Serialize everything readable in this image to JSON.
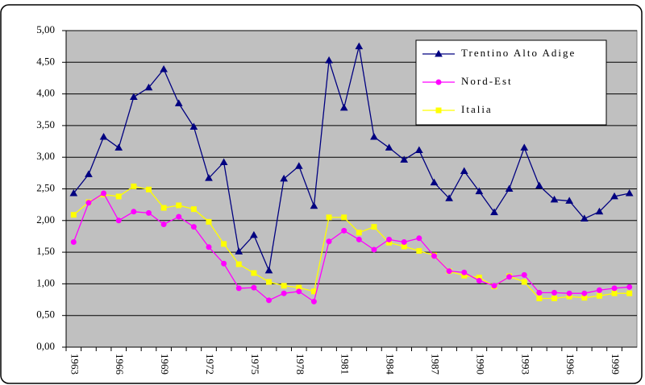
{
  "chart_data": {
    "type": "line",
    "categories": [
      "1963",
      null,
      null,
      "1966",
      null,
      null,
      "1969",
      null,
      null,
      "1972",
      null,
      null,
      "1975",
      null,
      null,
      "1978",
      null,
      null,
      "1981",
      null,
      null,
      "1984",
      null,
      null,
      "1987",
      null,
      null,
      "1990",
      null,
      null,
      "1993",
      null,
      null,
      "1996",
      null,
      null,
      "1999",
      null
    ],
    "series": [
      {
        "name": "Trentino Alto Adige",
        "color": "#000080",
        "marker": "triangle",
        "values": [
          2.43,
          2.73,
          3.32,
          3.15,
          3.95,
          4.1,
          4.39,
          3.85,
          3.48,
          2.67,
          2.92,
          1.51,
          1.77,
          1.21,
          2.66,
          2.86,
          2.23,
          4.53,
          3.78,
          4.75,
          3.32,
          3.15,
          2.96,
          3.11,
          2.6,
          2.35,
          2.78,
          2.46,
          2.13,
          2.5,
          3.15,
          2.55,
          2.33,
          2.31,
          2.03,
          2.14,
          2.38,
          2.43
        ]
      },
      {
        "name": "Nord-Est",
        "color": "#ff00ff",
        "marker": "circle",
        "values": [
          1.66,
          2.28,
          2.43,
          2.0,
          2.14,
          2.12,
          1.94,
          2.06,
          1.9,
          1.58,
          1.32,
          0.93,
          0.94,
          0.74,
          0.85,
          0.88,
          0.72,
          1.67,
          1.84,
          1.7,
          1.54,
          1.7,
          1.66,
          1.72,
          1.44,
          1.2,
          1.18,
          1.05,
          0.97,
          1.11,
          1.14,
          0.86,
          0.86,
          0.85,
          0.85,
          0.9,
          0.93,
          0.95
        ]
      },
      {
        "name": "Italia",
        "color": "#ffff00",
        "marker": "square",
        "values": [
          2.09,
          2.29,
          2.41,
          2.38,
          2.54,
          2.49,
          2.2,
          2.24,
          2.18,
          1.98,
          1.63,
          1.31,
          1.17,
          1.03,
          0.97,
          0.94,
          0.88,
          2.05,
          2.05,
          1.81,
          1.9,
          1.65,
          1.59,
          1.52,
          1.45,
          1.2,
          1.13,
          1.1,
          0.96,
          1.12,
          1.03,
          0.77,
          0.77,
          0.8,
          0.78,
          0.81,
          0.85,
          0.85
        ]
      }
    ],
    "ylim": [
      0,
      5
    ],
    "yticks": [
      {
        "value": 0,
        "label": "0,00"
      },
      {
        "value": 0.5,
        "label": "0,50"
      },
      {
        "value": 1,
        "label": "1,00"
      },
      {
        "value": 1.5,
        "label": "1,50"
      },
      {
        "value": 2,
        "label": "2,00"
      },
      {
        "value": 2.5,
        "label": "2,50"
      },
      {
        "value": 3,
        "label": "3,00"
      },
      {
        "value": 3.5,
        "label": "3,50"
      },
      {
        "value": 4,
        "label": "4,00"
      },
      {
        "value": 4.5,
        "label": "4,50"
      },
      {
        "value": 5,
        "label": "5,00"
      }
    ],
    "grid": true,
    "plot_background": "#c0c0c0",
    "legend": "upper right"
  }
}
